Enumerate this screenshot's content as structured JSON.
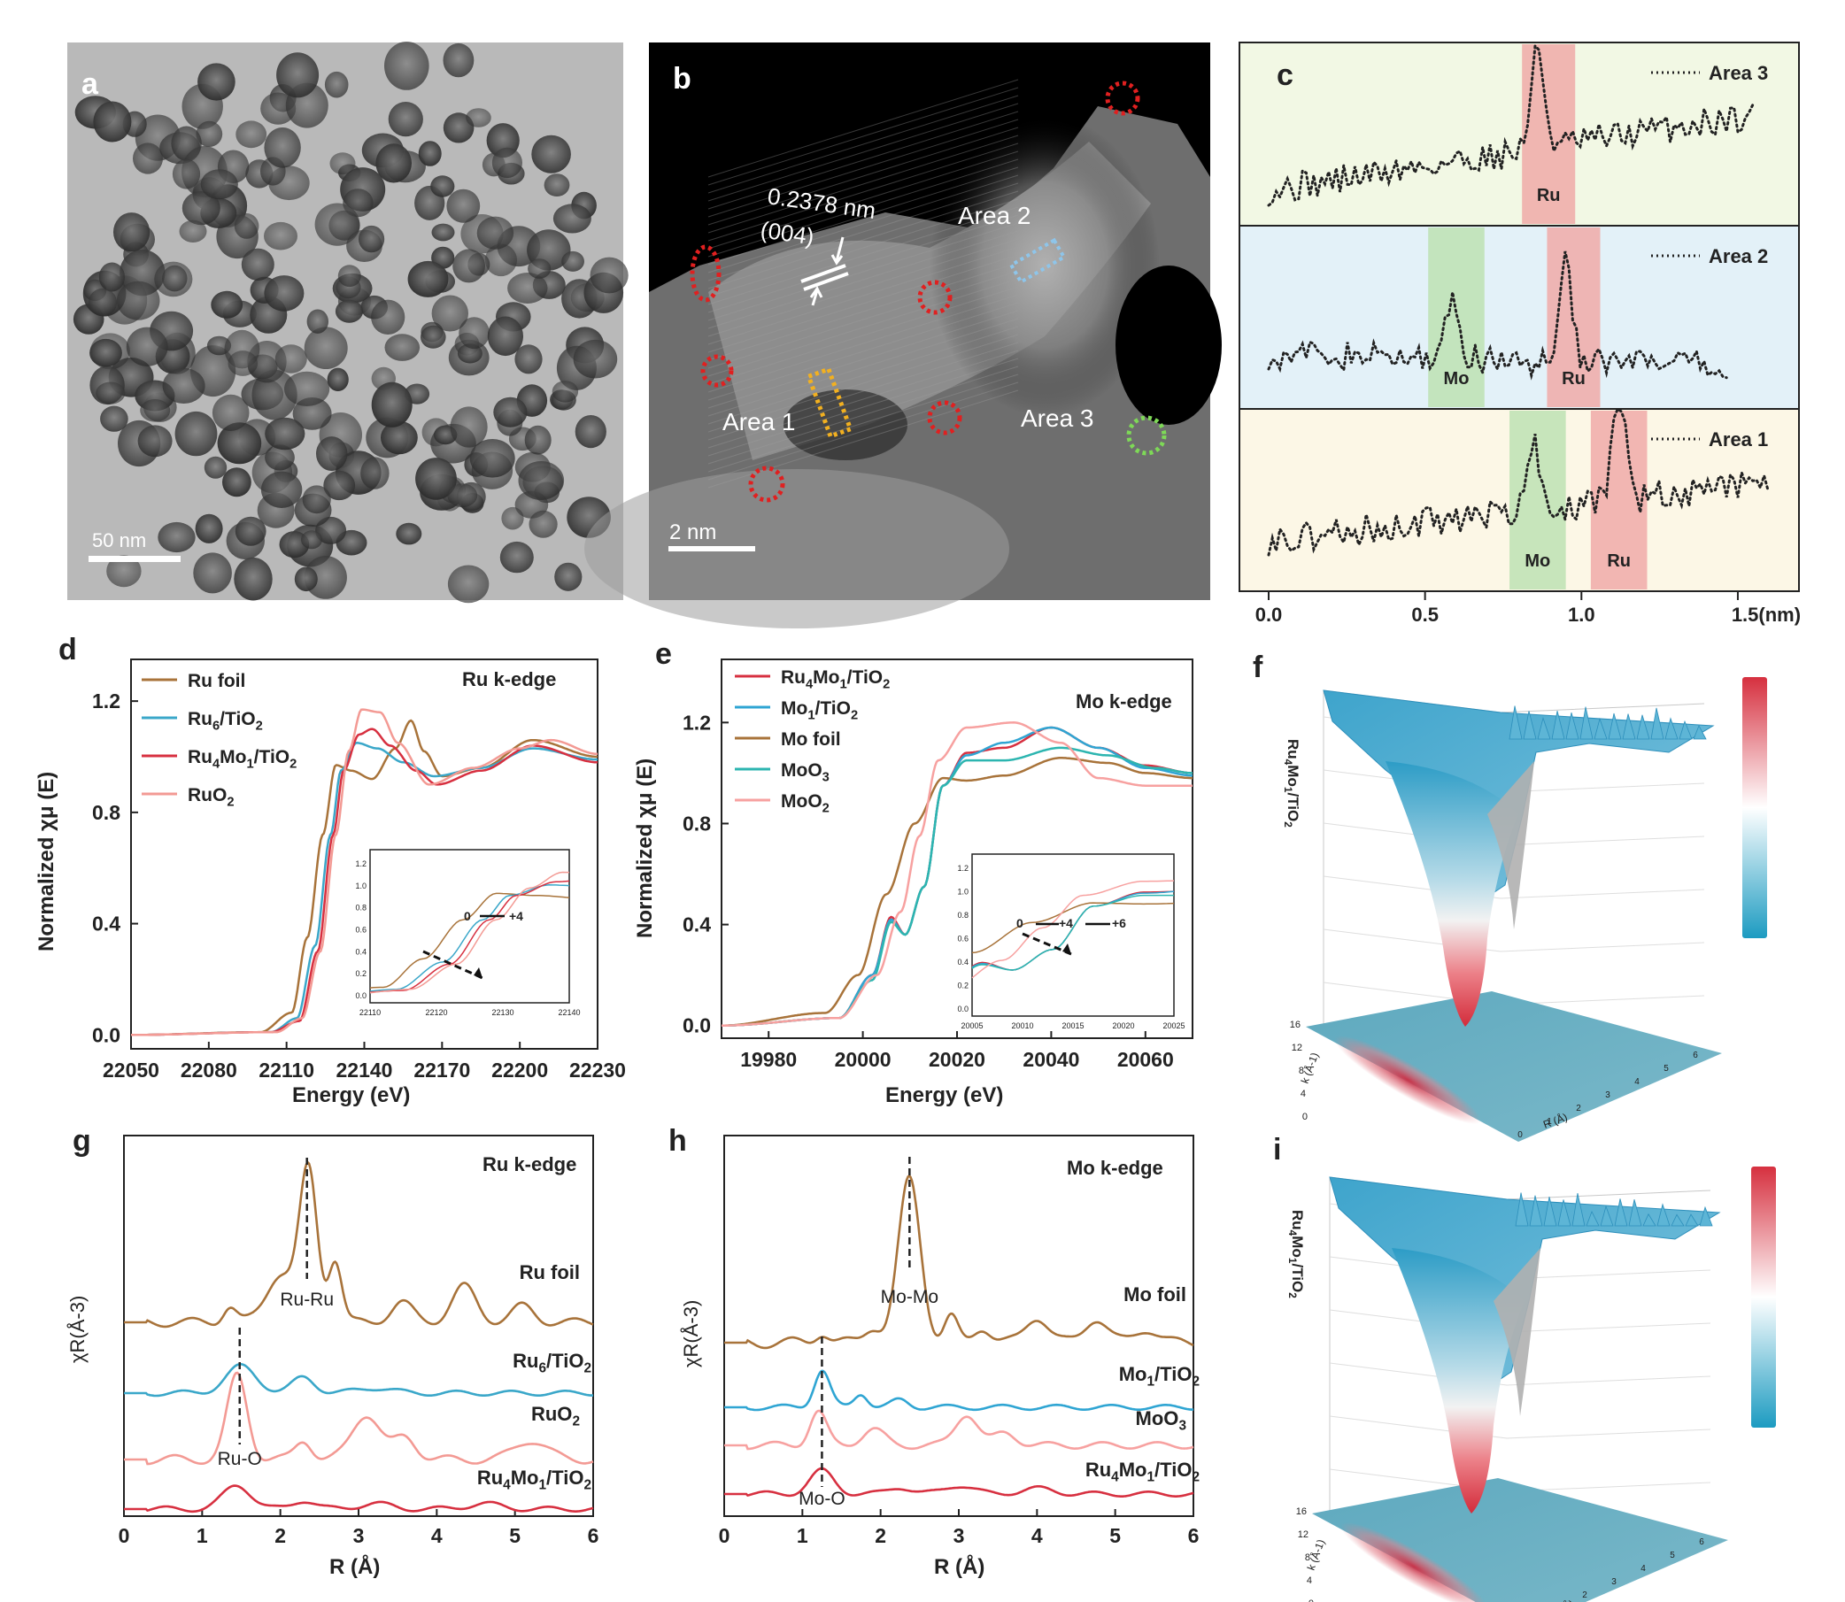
{
  "panels": {
    "a": {
      "letter": "a",
      "scale": "50 nm"
    },
    "b": {
      "letter": "b",
      "scale": "2 nm",
      "d_spacing": "0.2378 nm",
      "plane": "(004)",
      "area1": "Area 1",
      "area2": "Area 2",
      "area3": "Area 3"
    },
    "c": {
      "letter": "c",
      "legend": [
        "Area 3",
        "Area 2",
        "Area 1"
      ],
      "band_ru": "Ru",
      "band_mo": "Mo",
      "xticks": [
        "0.0",
        "0.5",
        "1.0",
        "1.5(nm)"
      ]
    },
    "d": {
      "letter": "d",
      "edge_label": "Ru k-edge",
      "ylabel": "Normalized χμ (E)",
      "xlabel": "Energy (eV)",
      "legend": [
        "Ru foil",
        "Ru6/TiO2",
        "Ru4Mo1/TiO2",
        "RuO2"
      ],
      "inset_ox": [
        "0",
        "+4"
      ]
    },
    "e": {
      "letter": "e",
      "edge_label": "Mo k-edge",
      "ylabel": "Normalized χμ (E)",
      "xlabel": "Energy (eV)",
      "legend": [
        "Ru4Mo1/TiO2",
        "Mo1/TiO2",
        "Mo foil",
        "MoO3",
        "MoO2"
      ],
      "inset_ox": [
        "0",
        "+4",
        "+6"
      ]
    },
    "f": {
      "letter": "f",
      "zlabel": "Ru4Mo1/TiO2",
      "xaxis": "R (Å)",
      "yaxis": "k (Å-1)"
    },
    "g": {
      "letter": "g",
      "edge_label": "Ru k-edge",
      "ylabel": "χR(Å-3)",
      "xlabel": "R (Å)",
      "peak_labels": [
        "Ru-Ru",
        "Ru-O"
      ],
      "curve_labels": [
        "Ru foil",
        "Ru6/TiO2",
        "RuO2",
        "Ru4Mo1/TiO2"
      ]
    },
    "h": {
      "letter": "h",
      "edge_label": "Mo k-edge",
      "ylabel": "χR(Å-3)",
      "xlabel": "R (Å)",
      "peak_labels": [
        "Mo-Mo",
        "Mo-O"
      ],
      "curve_labels": [
        "Mo foil",
        "Mo1/TiO2",
        "MoO3",
        "Ru4Mo1/TiO2"
      ]
    },
    "i": {
      "letter": "i",
      "zlabel": "Ru4Mo1/TiO2",
      "xaxis": "R (Å)",
      "yaxis": "k (Å-1)"
    }
  },
  "colors": {
    "ru_foil": "#a8733a",
    "ru6": "#3aa7c9",
    "ru4mo1": "#d73040",
    "ruo2": "#f39a94",
    "mo1": "#2fa5d3",
    "moo3": "#2cb5b0",
    "moo2": "#f7a1a0",
    "ru_band": "#f0aaa8",
    "mo_band": "#bde2b3"
  },
  "chart_data": [
    {
      "type": "line",
      "panel": "c",
      "title": "",
      "xlabel": "",
      "ylabel": "",
      "xlim": [
        0,
        1.6
      ],
      "xticks": [
        0,
        0.5,
        1.0,
        1.5
      ],
      "series": [
        {
          "name": "Area 3"
        },
        {
          "name": "Area 2"
        },
        {
          "name": "Area 1"
        }
      ],
      "bands": {
        "Area 3": {
          "Ru": [
            0.81,
            0.98
          ]
        },
        "Area 2": {
          "Mo": [
            0.51,
            0.69
          ],
          "Ru": [
            0.89,
            1.06
          ]
        },
        "Area 1": {
          "Mo": [
            0.77,
            0.95
          ],
          "Ru": [
            1.03,
            1.21
          ]
        }
      }
    },
    {
      "type": "line",
      "panel": "d",
      "title": "",
      "xlabel": "Energy (eV)",
      "ylabel": "Normalized χμ (E)",
      "xlim": [
        22050,
        22230
      ],
      "ylim": [
        -0.05,
        1.35
      ],
      "xticks": [
        22050,
        22080,
        22110,
        22140,
        22170,
        22200,
        22230
      ],
      "yticks": [
        0.0,
        0.4,
        0.8,
        1.2
      ],
      "series": [
        {
          "name": "Ru foil",
          "points": [
            [
              22050,
              0
            ],
            [
              22100,
              0.01
            ],
            [
              22112,
              0.08
            ],
            [
              22118,
              0.35
            ],
            [
              22124,
              0.72
            ],
            [
              22129,
              0.97
            ],
            [
              22135,
              0.95
            ],
            [
              22143,
              0.92
            ],
            [
              22152,
              1.03
            ],
            [
              22158,
              1.13
            ],
            [
              22163,
              1.02
            ],
            [
              22170,
              0.93
            ],
            [
              22185,
              0.96
            ],
            [
              22205,
              1.06
            ],
            [
              22230,
              1.0
            ]
          ]
        },
        {
          "name": "Ru6/TiO2",
          "points": [
            [
              22050,
              0
            ],
            [
              22104,
              0.01
            ],
            [
              22114,
              0.06
            ],
            [
              22121,
              0.32
            ],
            [
              22127,
              0.72
            ],
            [
              22131,
              0.95
            ],
            [
              22137,
              1.05
            ],
            [
              22145,
              1.03
            ],
            [
              22155,
              0.98
            ],
            [
              22167,
              0.93
            ],
            [
              22185,
              0.96
            ],
            [
              22205,
              1.03
            ],
            [
              22230,
              0.99
            ]
          ]
        },
        {
          "name": "Ru4Mo1/TiO2",
          "points": [
            [
              22050,
              0
            ],
            [
              22104,
              0.01
            ],
            [
              22115,
              0.05
            ],
            [
              22122,
              0.3
            ],
            [
              22128,
              0.72
            ],
            [
              22132,
              0.95
            ],
            [
              22138,
              1.08
            ],
            [
              22143,
              1.1
            ],
            [
              22150,
              1.04
            ],
            [
              22160,
              0.95
            ],
            [
              22168,
              0.9
            ],
            [
              22185,
              0.95
            ],
            [
              22205,
              1.04
            ],
            [
              22230,
              0.98
            ]
          ]
        },
        {
          "name": "RuO2",
          "points": [
            [
              22050,
              0
            ],
            [
              22106,
              0.01
            ],
            [
              22116,
              0.06
            ],
            [
              22123,
              0.3
            ],
            [
              22129,
              0.72
            ],
            [
              22134,
              1.02
            ],
            [
              22139,
              1.17
            ],
            [
              22146,
              1.16
            ],
            [
              22153,
              1.05
            ],
            [
              22165,
              0.9
            ],
            [
              22182,
              0.96
            ],
            [
              22200,
              1.03
            ],
            [
              22212,
              1.06
            ],
            [
              22230,
              1.01
            ]
          ]
        }
      ]
    },
    {
      "type": "line",
      "panel": "e",
      "title": "",
      "xlabel": "Energy (eV)",
      "ylabel": "Normalized χμ (E)",
      "xlim": [
        19970,
        20070
      ],
      "ylim": [
        -0.05,
        1.45
      ],
      "xticks": [
        19980,
        20000,
        20020,
        20040,
        20060
      ],
      "yticks": [
        0.0,
        0.4,
        0.8,
        1.2
      ],
      "series": [
        {
          "name": "Ru4Mo1/TiO2",
          "points": [
            [
              19970,
              0
            ],
            [
              19995,
              0.03
            ],
            [
              20002,
              0.2
            ],
            [
              20006,
              0.43
            ],
            [
              20009,
              0.36
            ],
            [
              20013,
              0.55
            ],
            [
              20017,
              0.95
            ],
            [
              20022,
              1.08
            ],
            [
              20030,
              1.1
            ],
            [
              20040,
              1.18
            ],
            [
              20050,
              1.1
            ],
            [
              20060,
              1.03
            ],
            [
              20070,
              1.0
            ]
          ]
        },
        {
          "name": "Mo1/TiO2",
          "points": [
            [
              19970,
              0
            ],
            [
              19995,
              0.03
            ],
            [
              20002,
              0.2
            ],
            [
              20006,
              0.42
            ],
            [
              20009,
              0.36
            ],
            [
              20013,
              0.55
            ],
            [
              20017,
              0.95
            ],
            [
              20022,
              1.07
            ],
            [
              20030,
              1.12
            ],
            [
              20040,
              1.18
            ],
            [
              20050,
              1.1
            ],
            [
              20060,
              1.02
            ],
            [
              20070,
              0.99
            ]
          ]
        },
        {
          "name": "Mo foil",
          "points": [
            [
              19970,
              0
            ],
            [
              19992,
              0.05
            ],
            [
              19999,
              0.2
            ],
            [
              20005,
              0.52
            ],
            [
              20011,
              0.8
            ],
            [
              20017,
              0.98
            ],
            [
              20022,
              0.97
            ],
            [
              20030,
              0.99
            ],
            [
              20042,
              1.06
            ],
            [
              20052,
              1.04
            ],
            [
              20060,
              1.0
            ],
            [
              20070,
              0.98
            ]
          ]
        },
        {
          "name": "MoO3",
          "points": [
            [
              19970,
              0
            ],
            [
              19995,
              0.03
            ],
            [
              20002,
              0.18
            ],
            [
              20006,
              0.41
            ],
            [
              20009,
              0.36
            ],
            [
              20013,
              0.55
            ],
            [
              20017,
              0.95
            ],
            [
              20022,
              1.05
            ],
            [
              20030,
              1.05
            ],
            [
              20042,
              1.1
            ],
            [
              20052,
              1.07
            ],
            [
              20062,
              1.02
            ],
            [
              20070,
              1.0
            ]
          ]
        },
        {
          "name": "MoO2",
          "points": [
            [
              19970,
              0
            ],
            [
              19995,
              0.03
            ],
            [
              20003,
              0.2
            ],
            [
              20008,
              0.45
            ],
            [
              20012,
              0.75
            ],
            [
              20016,
              1.05
            ],
            [
              20022,
              1.18
            ],
            [
              20032,
              1.2
            ],
            [
              20042,
              1.12
            ],
            [
              20050,
              0.98
            ],
            [
              20060,
              0.95
            ],
            [
              20070,
              0.95
            ]
          ]
        }
      ]
    },
    {
      "type": "line",
      "panel": "g",
      "title": "",
      "xlabel": "R (Å)",
      "ylabel": "χR(Å-3)",
      "xlim": [
        0,
        6
      ],
      "xticks": [
        0,
        1,
        2,
        3,
        4,
        5,
        6
      ],
      "series": [
        {
          "name": "Ru foil"
        },
        {
          "name": "Ru6/TiO2"
        },
        {
          "name": "RuO2"
        },
        {
          "name": "Ru4Mo1/TiO2"
        }
      ],
      "markers": {
        "Ru-Ru": 2.34,
        "Ru-O": 1.48
      }
    },
    {
      "type": "line",
      "panel": "h",
      "title": "",
      "xlabel": "R (Å)",
      "ylabel": "χR(Å-3)",
      "xlim": [
        0,
        6
      ],
      "xticks": [
        0,
        1,
        2,
        3,
        4,
        5,
        6
      ],
      "series": [
        {
          "name": "Mo foil"
        },
        {
          "name": "Mo1/TiO2"
        },
        {
          "name": "MoO3"
        },
        {
          "name": "Ru4Mo1/TiO2"
        }
      ],
      "markers": {
        "Mo-Mo": 2.37,
        "Mo-O": 1.25
      }
    }
  ]
}
